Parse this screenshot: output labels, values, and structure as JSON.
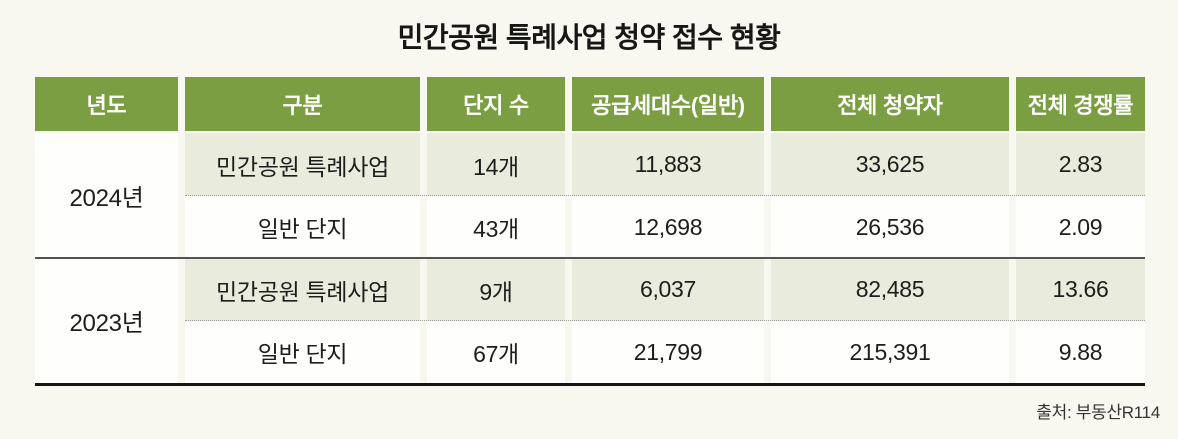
{
  "page": {
    "title": "민간공원 특례사업 청약 접수 현황",
    "source": "출처: 부동산R114"
  },
  "theme": {
    "page_bg": "#f8f7f0",
    "header_bg": "#7a9e41",
    "header_text": "#ffffff",
    "row_tint": "#e9ecdc",
    "cell_bg": "#fefefd",
    "body_text": "#1d1d1d",
    "separator": "#55534e",
    "dotted": "#9a9a9a",
    "border_dark": "#141414"
  },
  "table": {
    "columns": [
      "년도",
      "구분",
      "단지 수",
      "공급세대수(일반)",
      "전체 청약자",
      "전체 경쟁률"
    ],
    "groups": [
      {
        "year": "2024년",
        "rows": [
          {
            "category": "민간공원 특례사업",
            "complexes": "14개",
            "supply": "11,883",
            "subscribers": "33,625",
            "ratio": "2.83"
          },
          {
            "category": "일반 단지",
            "complexes": "43개",
            "supply": "12,698",
            "subscribers": "26,536",
            "ratio": "2.09"
          }
        ]
      },
      {
        "year": "2023년",
        "rows": [
          {
            "category": "민간공원 특례사업",
            "complexes": "9개",
            "supply": "6,037",
            "subscribers": "82,485",
            "ratio": "13.66"
          },
          {
            "category": "일반 단지",
            "complexes": "67개",
            "supply": "21,799",
            "subscribers": "215,391",
            "ratio": "9.88"
          }
        ]
      }
    ]
  },
  "chart_data": {
    "type": "table",
    "title": "민간공원 특례사업 청약 접수 현황",
    "columns": [
      "년도",
      "구분",
      "단지 수",
      "공급세대수(일반)",
      "전체 청약자",
      "전체 경쟁률"
    ],
    "rows": [
      [
        "2024년",
        "민간공원 특례사업",
        "14개",
        "11,883",
        "33,625",
        "2.83"
      ],
      [
        "2024년",
        "일반 단지",
        "43개",
        "12,698",
        "26,536",
        "2.09"
      ],
      [
        "2023년",
        "민간공원 특례사업",
        "9개",
        "6,037",
        "82,485",
        "13.66"
      ],
      [
        "2023년",
        "일반 단지",
        "67개",
        "21,799",
        "215,391",
        "9.88"
      ]
    ],
    "source": "출처: 부동산R114",
    "legend_position": "none",
    "grid": "partial"
  }
}
